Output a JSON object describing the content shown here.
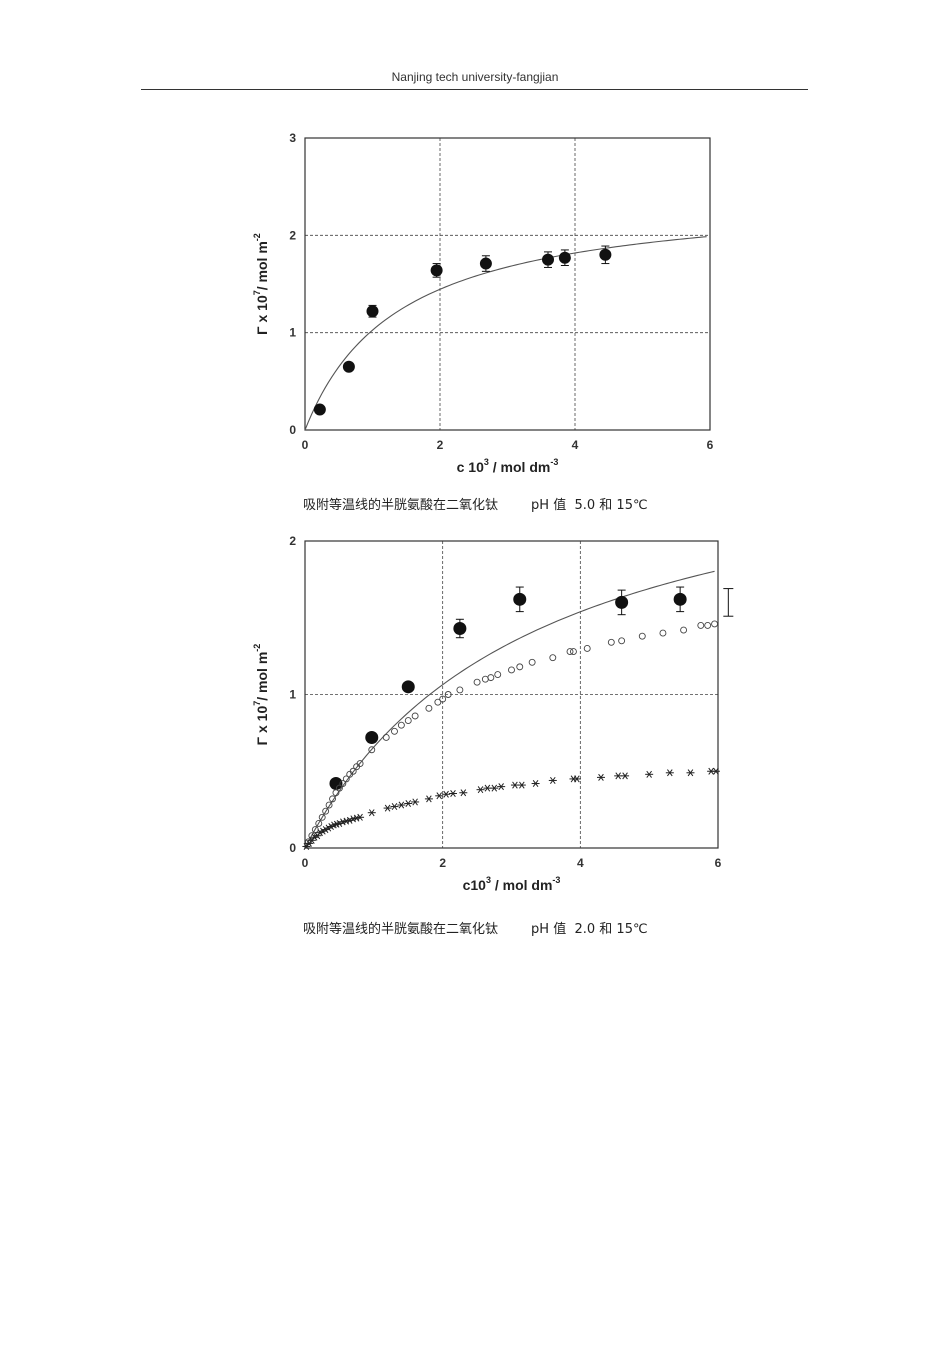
{
  "header": {
    "text": "Nanjing tech university-fangjian"
  },
  "captions": [
    "吸附等温线的半胱氨酸在二氧化钛        pH 值  5.0 和 15℃",
    "吸附等温线的半胱氨酸在二氧化钛        pH 值  2.0 和 15℃"
  ],
  "chart_data": [
    {
      "type": "scatter",
      "xlabel": {
        "base": "c 10",
        "sup": "3",
        "rest": " / mol dm",
        "sup2": "-3"
      },
      "ylabel": {
        "base": "Γ x 10",
        "sup": "7",
        "rest": "/ mol m",
        "sup2": "-2"
      },
      "xlim": [
        0,
        6
      ],
      "ylim": [
        0,
        3
      ],
      "xticks": [
        "0",
        "2",
        "4",
        "6"
      ],
      "yticks": [
        "0",
        "1",
        "2",
        "3"
      ],
      "grid": {
        "x": [
          2,
          4
        ],
        "y": [
          1,
          2
        ],
        "style": "dashed"
      },
      "series": [
        {
          "marker": "filled-circle",
          "points": [
            {
              "x": 0.22,
              "y": 0.21,
              "err": 0
            },
            {
              "x": 0.65,
              "y": 0.65,
              "err": 0
            },
            {
              "x": 1.0,
              "y": 1.22,
              "err": 0.06
            },
            {
              "x": 1.95,
              "y": 1.64,
              "err": 0.07
            },
            {
              "x": 2.68,
              "y": 1.71,
              "err": 0.08
            },
            {
              "x": 3.6,
              "y": 1.75,
              "err": 0.08
            },
            {
              "x": 3.85,
              "y": 1.77,
              "err": 0.08
            },
            {
              "x": 4.45,
              "y": 1.8,
              "err": 0.09
            }
          ]
        }
      ],
      "fit": {
        "type": "langmuir",
        "qmax": 2.45,
        "k": 0.72,
        "x_end": 5.95
      }
    },
    {
      "type": "scatter",
      "xlabel": {
        "base": "c10",
        "sup": "3",
        "rest": " / mol dm",
        "sup2": "-3"
      },
      "ylabel": {
        "base": "Γ x 10",
        "sup": "7",
        "rest": "/ mol m",
        "sup2": "-2"
      },
      "xlim": [
        0,
        6
      ],
      "ylim": [
        0,
        2
      ],
      "xticks": [
        "0",
        "2",
        "4",
        "6"
      ],
      "yticks": [
        "0",
        "1",
        "2"
      ],
      "grid": {
        "x": [
          2,
          4
        ],
        "y": [
          1
        ],
        "style": "dashed"
      },
      "series": [
        {
          "marker": "filled-circle",
          "points": [
            {
              "x": 0.45,
              "y": 0.42,
              "err": 0
            },
            {
              "x": 0.97,
              "y": 0.72,
              "err": 0
            },
            {
              "x": 1.5,
              "y": 1.05,
              "err": 0
            },
            {
              "x": 2.25,
              "y": 1.43,
              "err": 0.06
            },
            {
              "x": 3.12,
              "y": 1.62,
              "err": 0.08
            },
            {
              "x": 4.6,
              "y": 1.6,
              "err": 0.08
            },
            {
              "x": 5.45,
              "y": 1.62,
              "err": 0.08
            }
          ]
        },
        {
          "marker": "open-circle",
          "points": [
            {
              "x": 0.05,
              "y": 0.04
            },
            {
              "x": 0.1,
              "y": 0.08
            },
            {
              "x": 0.15,
              "y": 0.12
            },
            {
              "x": 0.2,
              "y": 0.16
            },
            {
              "x": 0.25,
              "y": 0.2
            },
            {
              "x": 0.3,
              "y": 0.24
            },
            {
              "x": 0.35,
              "y": 0.28
            },
            {
              "x": 0.4,
              "y": 0.32
            },
            {
              "x": 0.45,
              "y": 0.36
            },
            {
              "x": 0.5,
              "y": 0.39
            },
            {
              "x": 0.55,
              "y": 0.42
            },
            {
              "x": 0.6,
              "y": 0.45
            },
            {
              "x": 0.65,
              "y": 0.48
            },
            {
              "x": 0.7,
              "y": 0.5
            },
            {
              "x": 0.75,
              "y": 0.53
            },
            {
              "x": 0.8,
              "y": 0.55
            },
            {
              "x": 0.97,
              "y": 0.64
            },
            {
              "x": 1.18,
              "y": 0.72
            },
            {
              "x": 1.3,
              "y": 0.76
            },
            {
              "x": 1.4,
              "y": 0.8
            },
            {
              "x": 1.5,
              "y": 0.83
            },
            {
              "x": 1.6,
              "y": 0.86
            },
            {
              "x": 1.8,
              "y": 0.91
            },
            {
              "x": 1.93,
              "y": 0.95
            },
            {
              "x": 2.0,
              "y": 0.97
            },
            {
              "x": 2.08,
              "y": 1.0
            },
            {
              "x": 2.25,
              "y": 1.03
            },
            {
              "x": 2.5,
              "y": 1.08
            },
            {
              "x": 2.62,
              "y": 1.1
            },
            {
              "x": 2.7,
              "y": 1.11
            },
            {
              "x": 2.8,
              "y": 1.13
            },
            {
              "x": 3.0,
              "y": 1.16
            },
            {
              "x": 3.12,
              "y": 1.18
            },
            {
              "x": 3.3,
              "y": 1.21
            },
            {
              "x": 3.6,
              "y": 1.24
            },
            {
              "x": 3.85,
              "y": 1.28
            },
            {
              "x": 3.9,
              "y": 1.28
            },
            {
              "x": 4.1,
              "y": 1.3
            },
            {
              "x": 4.45,
              "y": 1.34
            },
            {
              "x": 4.6,
              "y": 1.35
            },
            {
              "x": 4.9,
              "y": 1.38
            },
            {
              "x": 5.2,
              "y": 1.4
            },
            {
              "x": 5.5,
              "y": 1.42
            },
            {
              "x": 5.75,
              "y": 1.45
            },
            {
              "x": 5.85,
              "y": 1.45
            },
            {
              "x": 5.95,
              "y": 1.46
            }
          ]
        },
        {
          "marker": "asterisk",
          "points": [
            {
              "x": 0.02,
              "y": 0.01
            },
            {
              "x": 0.06,
              "y": 0.03
            },
            {
              "x": 0.1,
              "y": 0.05
            },
            {
              "x": 0.14,
              "y": 0.07
            },
            {
              "x": 0.18,
              "y": 0.08
            },
            {
              "x": 0.22,
              "y": 0.1
            },
            {
              "x": 0.26,
              "y": 0.11
            },
            {
              "x": 0.3,
              "y": 0.12
            },
            {
              "x": 0.34,
              "y": 0.13
            },
            {
              "x": 0.38,
              "y": 0.14
            },
            {
              "x": 0.42,
              "y": 0.15
            },
            {
              "x": 0.46,
              "y": 0.155
            },
            {
              "x": 0.5,
              "y": 0.16
            },
            {
              "x": 0.55,
              "y": 0.17
            },
            {
              "x": 0.6,
              "y": 0.175
            },
            {
              "x": 0.65,
              "y": 0.18
            },
            {
              "x": 0.7,
              "y": 0.19
            },
            {
              "x": 0.75,
              "y": 0.195
            },
            {
              "x": 0.8,
              "y": 0.2
            },
            {
              "x": 0.97,
              "y": 0.23
            },
            {
              "x": 1.2,
              "y": 0.26
            },
            {
              "x": 1.3,
              "y": 0.27
            },
            {
              "x": 1.4,
              "y": 0.28
            },
            {
              "x": 1.5,
              "y": 0.29
            },
            {
              "x": 1.6,
              "y": 0.3
            },
            {
              "x": 1.8,
              "y": 0.32
            },
            {
              "x": 1.95,
              "y": 0.34
            },
            {
              "x": 2.05,
              "y": 0.35
            },
            {
              "x": 2.15,
              "y": 0.355
            },
            {
              "x": 2.3,
              "y": 0.36
            },
            {
              "x": 2.55,
              "y": 0.38
            },
            {
              "x": 2.65,
              "y": 0.39
            },
            {
              "x": 2.75,
              "y": 0.39
            },
            {
              "x": 2.85,
              "y": 0.4
            },
            {
              "x": 3.05,
              "y": 0.41
            },
            {
              "x": 3.15,
              "y": 0.41
            },
            {
              "x": 3.35,
              "y": 0.42
            },
            {
              "x": 3.6,
              "y": 0.44
            },
            {
              "x": 3.9,
              "y": 0.45
            },
            {
              "x": 3.95,
              "y": 0.45
            },
            {
              "x": 4.3,
              "y": 0.46
            },
            {
              "x": 4.55,
              "y": 0.47
            },
            {
              "x": 4.65,
              "y": 0.47
            },
            {
              "x": 5.0,
              "y": 0.48
            },
            {
              "x": 5.3,
              "y": 0.49
            },
            {
              "x": 5.6,
              "y": 0.49
            },
            {
              "x": 5.9,
              "y": 0.5
            },
            {
              "x": 5.97,
              "y": 0.5
            }
          ]
        }
      ],
      "fit": {
        "type": "langmuir",
        "qmax": 2.78,
        "k": 0.31,
        "x_end": 5.95
      },
      "error_bar_key": {
        "x": 6.15,
        "y": 1.6,
        "err": 0.09
      }
    }
  ]
}
